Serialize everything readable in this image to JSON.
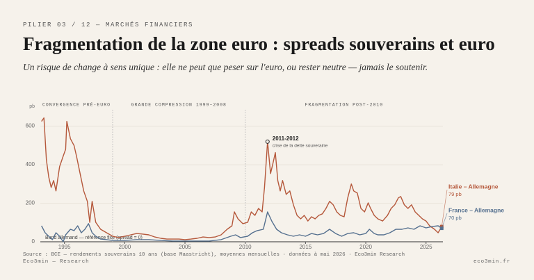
{
  "header": {
    "kicker": "PILIER 03 / 12 — MARCHÉS FINANCIERS",
    "title": "Fragmentation de la zone euro : spreads souverains et euro",
    "subtitle": "Un risque de change à sens unique : elle ne peut que peser sur l'euro, ou rester neutre — jamais le soutenir."
  },
  "chart_data": {
    "type": "line",
    "y_unit": "pb",
    "xlim": [
      1993,
      2026.4
    ],
    "xticks": [
      1995,
      2000,
      2005,
      2010,
      2015,
      2020,
      2025
    ],
    "ylim": [
      0,
      660
    ],
    "yticks": [
      0,
      200,
      400,
      600
    ],
    "grid": true,
    "phases": [
      {
        "label": "CONVERGENCE PRÉ-EURO",
        "start": 1993,
        "end": 1999
      },
      {
        "label": "GRANDE COMPRESSION 1999–2008",
        "start": 1999,
        "end": 2010
      },
      {
        "label": "FRAGMENTATION POST-2010",
        "start": 2010,
        "end": 2026.4
      }
    ],
    "baseline_label": "Bund allemand — référence fixe (spread = 0)",
    "annotation": {
      "label": "2011-2012",
      "text": "crise de la dette souveraine",
      "x": 2011.85,
      "y": 520
    },
    "series": [
      {
        "name": "Italie – Allemagne",
        "color": "#b5583b",
        "end_label": "79 pb",
        "x": [
          1993.1,
          1993.3,
          1993.5,
          1993.7,
          1993.9,
          1994.1,
          1994.3,
          1994.6,
          1994.9,
          1995.1,
          1995.2,
          1995.5,
          1995.8,
          1996.0,
          1996.3,
          1996.6,
          1996.9,
          1997.1,
          1997.3,
          1997.6,
          1998.0,
          1998.5,
          1999.0,
          1999.5,
          2000.0,
          2000.5,
          2001.0,
          2001.5,
          2002.0,
          2002.5,
          2003.0,
          2003.5,
          2004.0,
          2004.5,
          2005.0,
          2005.5,
          2006.0,
          2006.5,
          2007.0,
          2007.5,
          2008.0,
          2008.5,
          2008.9,
          2009.1,
          2009.4,
          2009.8,
          2010.2,
          2010.5,
          2010.8,
          2011.1,
          2011.4,
          2011.6,
          2011.85,
          2012.1,
          2012.3,
          2012.5,
          2012.7,
          2012.9,
          2013.1,
          2013.4,
          2013.7,
          2014.0,
          2014.3,
          2014.6,
          2014.9,
          2015.2,
          2015.5,
          2015.8,
          2016.1,
          2016.4,
          2016.7,
          2017.0,
          2017.3,
          2017.6,
          2017.9,
          2018.2,
          2018.5,
          2018.8,
          2019.0,
          2019.3,
          2019.6,
          2019.9,
          2020.2,
          2020.4,
          2020.7,
          2021.0,
          2021.4,
          2021.8,
          2022.1,
          2022.4,
          2022.7,
          2022.9,
          2023.2,
          2023.5,
          2023.8,
          2024.1,
          2024.4,
          2024.7,
          2025.0,
          2025.3,
          2025.7,
          2026.0,
          2026.3
        ],
        "values": [
          625,
          643,
          426,
          336,
          282,
          318,
          264,
          390,
          445,
          480,
          625,
          535,
          500,
          445,
          354,
          264,
          210,
          101,
          210,
          101,
          65,
          47,
          29,
          22,
          29,
          36,
          43,
          40,
          36,
          25,
          18,
          14,
          14,
          14,
          11,
          14,
          18,
          25,
          22,
          25,
          36,
          65,
          83,
          155,
          119,
          94,
          101,
          155,
          137,
          173,
          155,
          282,
          520,
          354,
          408,
          463,
          318,
          264,
          318,
          246,
          264,
          192,
          137,
          119,
          137,
          108,
          130,
          119,
          137,
          145,
          173,
          210,
          192,
          155,
          137,
          130,
          228,
          300,
          264,
          253,
          173,
          155,
          202,
          173,
          137,
          119,
          108,
          137,
          173,
          192,
          228,
          235,
          192,
          173,
          192,
          155,
          137,
          119,
          108,
          83,
          65,
          47,
          79
        ]
      },
      {
        "name": "France – Allemagne",
        "color": "#55708f",
        "end_label": "70 pb",
        "x": [
          1993.1,
          1993.4,
          1993.7,
          1994.0,
          1994.3,
          1994.6,
          1994.9,
          1995.1,
          1995.5,
          1995.8,
          1996.1,
          1996.4,
          1996.7,
          1997.0,
          1997.3,
          1997.6,
          1998.0,
          1998.5,
          1999,
          2000,
          2001,
          2002,
          2003,
          2004,
          2005,
          2006,
          2007,
          2008,
          2008.8,
          2009.2,
          2009.6,
          2010.2,
          2010.6,
          2011.0,
          2011.5,
          2011.85,
          2012.2,
          2012.6,
          2013.0,
          2013.5,
          2014,
          2014.5,
          2015,
          2015.5,
          2016,
          2016.5,
          2017,
          2017.5,
          2018,
          2018.5,
          2019,
          2019.5,
          2020,
          2020.3,
          2020.7,
          2021,
          2021.5,
          2022,
          2022.5,
          2023,
          2023.5,
          2024,
          2024.5,
          2025,
          2025.5,
          2026,
          2026.3
        ],
        "values": [
          83,
          47,
          29,
          11,
          47,
          29,
          0,
          36,
          65,
          58,
          83,
          47,
          65,
          94,
          47,
          29,
          14,
          11,
          7,
          7,
          11,
          11,
          7,
          4,
          4,
          4,
          4,
          11,
          29,
          36,
          22,
          29,
          47,
          58,
          65,
          155,
          108,
          65,
          47,
          36,
          29,
          36,
          29,
          43,
          36,
          43,
          65,
          43,
          29,
          43,
          47,
          36,
          43,
          65,
          43,
          36,
          36,
          47,
          65,
          65,
          72,
          65,
          83,
          72,
          79,
          83,
          70
        ]
      }
    ]
  },
  "footer": {
    "source": "Source : BCE — rendements souverains 10 ans (base Maastricht), moyennes mensuelles · données à mai 2026 · Eco3min Research",
    "brand": "Eco3min — Research",
    "site": "eco3min.fr"
  }
}
